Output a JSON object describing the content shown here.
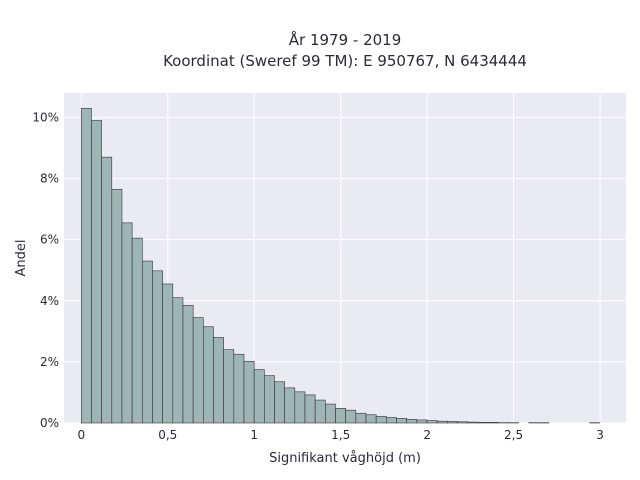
{
  "chart_data": {
    "type": "bar",
    "title_lines": [
      "År 1979 - 2019",
      "Koordinat (Sweref 99 TM): E 950767, N 6434444"
    ],
    "xlabel": "Signifikant våghöjd (m)",
    "ylabel": "Andel",
    "xlim": [
      -0.1,
      3.15
    ],
    "ylim": [
      0,
      10.8
    ],
    "x_ticks": [
      {
        "value": 0,
        "label": "0"
      },
      {
        "value": 0.5,
        "label": "0,5"
      },
      {
        "value": 1,
        "label": "1"
      },
      {
        "value": 1.5,
        "label": "1,5"
      },
      {
        "value": 2,
        "label": "2"
      },
      {
        "value": 2.5,
        "label": "2,5"
      },
      {
        "value": 3,
        "label": "3"
      }
    ],
    "y_ticks": [
      {
        "value": 0,
        "label": "0%"
      },
      {
        "value": 2,
        "label": "2%"
      },
      {
        "value": 4,
        "label": "4%"
      },
      {
        "value": 6,
        "label": "6%"
      },
      {
        "value": 8,
        "label": "8%"
      },
      {
        "value": 10,
        "label": "10%"
      }
    ],
    "bin_width": 0.0588,
    "bin_start": 0,
    "values": [
      10.3,
      9.9,
      8.7,
      7.65,
      6.55,
      6.05,
      5.3,
      4.98,
      4.55,
      4.1,
      3.85,
      3.45,
      3.15,
      2.8,
      2.4,
      2.25,
      2.02,
      1.75,
      1.55,
      1.35,
      1.15,
      1.02,
      0.92,
      0.75,
      0.62,
      0.48,
      0.42,
      0.32,
      0.27,
      0.22,
      0.18,
      0.15,
      0.12,
      0.1,
      0.08,
      0.06,
      0.05,
      0.04,
      0.03,
      0.02,
      0.02,
      0.01,
      0.01,
      0,
      0.01,
      0.01,
      0,
      0,
      0,
      0,
      0.01
    ],
    "bar_color": "#9db5b3",
    "bar_edge_color": "#333333",
    "plot_bg": "#eaeaf2",
    "grid": true
  }
}
